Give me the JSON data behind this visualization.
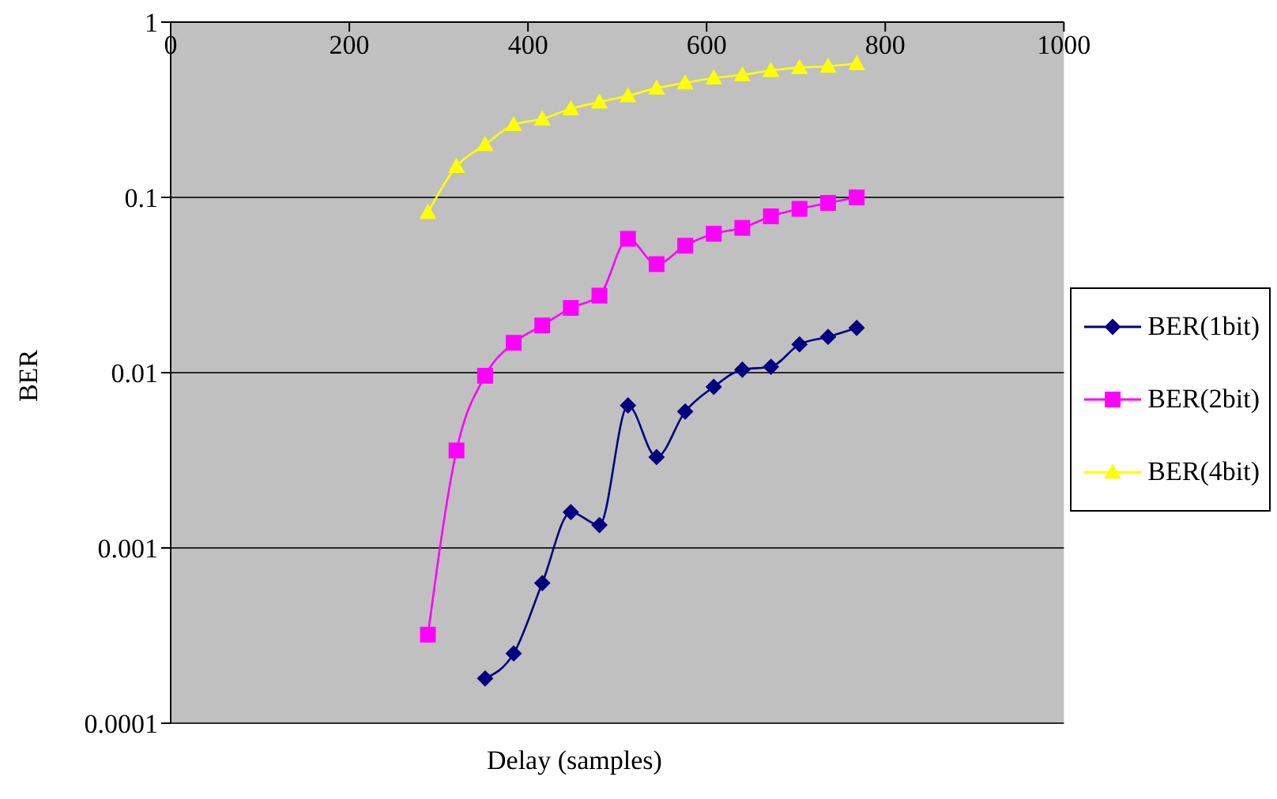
{
  "chart_data": {
    "type": "line",
    "xlabel": "Delay (samples)",
    "ylabel": "BER",
    "log": "y",
    "grid": "y",
    "legend": "right",
    "line_style": "solid",
    "x": [
      288,
      320,
      352,
      384,
      416,
      448,
      480,
      512,
      544,
      576,
      608,
      640,
      672,
      704,
      736,
      768
    ],
    "xlim": [
      0,
      1000
    ],
    "xticks": [
      0,
      200,
      400,
      600,
      800,
      1000
    ],
    "ylim": [
      0.0001,
      1
    ],
    "yticks": [
      0.0001,
      0.001,
      0.01,
      0.1,
      1
    ],
    "series": [
      {
        "name": "BER(1bit)",
        "color": "#000080",
        "marker": "diamond",
        "values": [
          null,
          null,
          0.00018,
          0.00025,
          0.00063,
          0.0016,
          0.00135,
          0.0065,
          0.0033,
          0.006,
          0.0083,
          0.0104,
          0.0108,
          0.0145,
          0.016,
          0.018
        ]
      },
      {
        "name": "BER(2bit)",
        "color": "#ff00ff",
        "marker": "square",
        "values": [
          0.00032,
          0.0036,
          0.0096,
          0.0148,
          0.0186,
          0.0234,
          0.0275,
          0.058,
          0.0416,
          0.053,
          0.062,
          0.067,
          0.078,
          0.086,
          0.093,
          0.1
        ]
      },
      {
        "name": "BER(4bit)",
        "color": "#ffff00",
        "marker": "triangle",
        "values": [
          0.082,
          0.15,
          0.2,
          0.26,
          0.28,
          0.32,
          0.35,
          0.38,
          0.42,
          0.45,
          0.48,
          0.5,
          0.53,
          0.55,
          0.56,
          0.58
        ]
      }
    ]
  }
}
